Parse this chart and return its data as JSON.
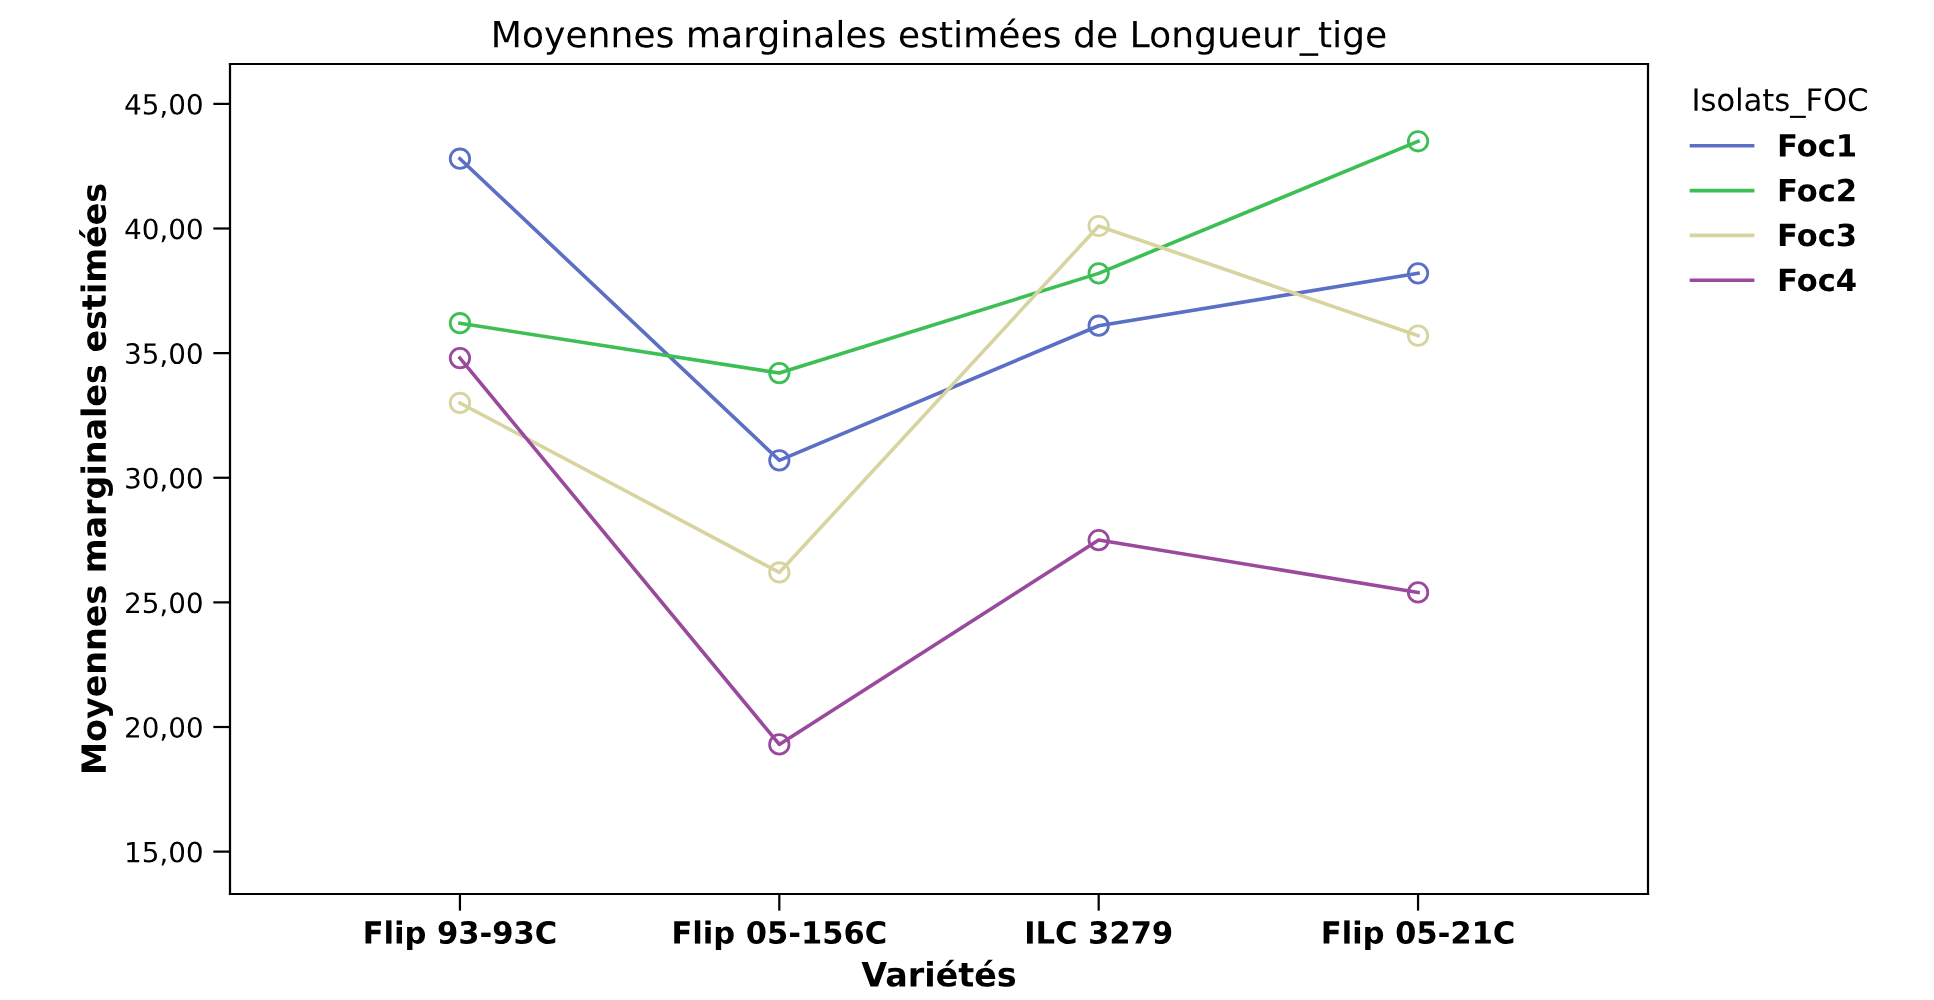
{
  "chart_data": {
    "type": "line",
    "title": "Moyennes marginales estimées de Longueur_tige",
    "xlabel": "Variétés",
    "ylabel": "Moyennes marginales estimées",
    "legend_title": "Isolats_FOC",
    "categories": [
      "Flip 93-93C",
      "Flip 05-156C",
      "ILC 3279",
      "Flip 05-21C"
    ],
    "series": [
      {
        "name": "Foc1",
        "color": "#5b6fc4",
        "values": [
          42.8,
          30.7,
          36.1,
          38.2
        ]
      },
      {
        "name": "Foc2",
        "color": "#3dbf55",
        "values": [
          36.2,
          34.2,
          38.2,
          43.5
        ]
      },
      {
        "name": "Foc3",
        "color": "#d8d4a0",
        "values": [
          33.0,
          26.2,
          40.1,
          35.7
        ]
      },
      {
        "name": "Foc4",
        "color": "#9a4a9c",
        "values": [
          34.8,
          19.3,
          27.5,
          25.4
        ]
      }
    ],
    "ylim": [
      13.3,
      46.6
    ],
    "yticks": [
      {
        "value": 15,
        "label": "15,00"
      },
      {
        "value": 20,
        "label": "20,00"
      },
      {
        "value": 25,
        "label": "25,00"
      },
      {
        "value": 30,
        "label": "30,00"
      },
      {
        "value": 35,
        "label": "35,00"
      },
      {
        "value": 40,
        "label": "40,00"
      },
      {
        "value": 45,
        "label": "45,00"
      }
    ],
    "marker": "circle",
    "line_style": "solid",
    "grid": false,
    "legend": "top right"
  }
}
